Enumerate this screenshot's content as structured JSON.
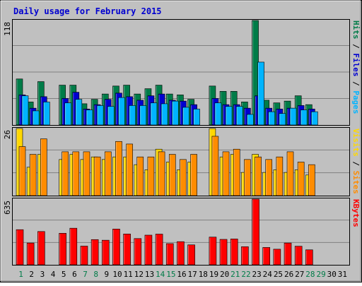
{
  "chart_data": {
    "type": "bar",
    "title": "Daily usage for February 2015",
    "days": [
      "1",
      "2",
      "3",
      "4",
      "5",
      "6",
      "7",
      "8",
      "9",
      "10",
      "11",
      "12",
      "13",
      "14",
      "15",
      "16",
      "17",
      "18",
      "19",
      "20",
      "21",
      "22",
      "23",
      "24",
      "25",
      "26",
      "27",
      "28",
      "29",
      "30",
      "31"
    ],
    "weekend_days": [
      "1",
      "7",
      "8",
      "14",
      "15",
      "21",
      "22",
      "28",
      "29"
    ],
    "panels": [
      {
        "id": "hits-files-pages",
        "ymax_label": "118",
        "ymax": 118,
        "axis_label_parts": [
          {
            "text": "Pages",
            "color": "#00b4ff"
          },
          {
            "text": " / ",
            "color": "#000000"
          },
          {
            "text": "Files",
            "color": "#0000d0"
          },
          {
            "text": " / ",
            "color": "#000000"
          },
          {
            "text": "Hits",
            "color": "#007c48"
          }
        ],
        "series": [
          {
            "name": "Hits",
            "color": "#007c48",
            "values": [
              52,
              26,
              49,
              0,
              45,
              45,
              24,
              29,
              35,
              44,
              45,
              35,
              41,
              45,
              35,
              34,
              29,
              0,
              44,
              38,
              38,
              26,
              118,
              28,
              25,
              27,
              33,
              23,
              0,
              0,
              0
            ]
          },
          {
            "name": "Files",
            "color": "#0000d0",
            "values": [
              34,
              19,
              32,
              0,
              30,
              37,
              18,
              23,
              29,
              36,
              32,
              28,
              33,
              35,
              28,
              27,
              23,
              0,
              30,
              23,
              23,
              19,
              33,
              19,
              18,
              19,
              22,
              18,
              0,
              0,
              0
            ]
          },
          {
            "name": "Pages",
            "color": "#00b4ff",
            "values": [
              33,
              16,
              26,
              0,
              25,
              29,
              17,
              22,
              21,
              31,
              22,
              22,
              25,
              24,
              27,
              20,
              18,
              0,
              25,
              21,
              21,
              12,
              71,
              15,
              13,
              19,
              17,
              15,
              0,
              0,
              0
            ]
          }
        ]
      },
      {
        "id": "visits-sites",
        "ymax_label": "26",
        "ymax": 26,
        "axis_label_parts": [
          {
            "text": "Sites",
            "color": "#ff8c00"
          },
          {
            "text": " / ",
            "color": "#000000"
          },
          {
            "text": "Visits",
            "color": "#ffd800"
          }
        ],
        "series": [
          {
            "name": "Visits",
            "color": "#ffd800",
            "values": [
              26,
              11,
              16,
              0,
              14,
              16,
              14,
              15,
              14,
              15,
              15,
              12,
              10,
              18,
              13,
              10,
              13,
              0,
              26,
              15,
              16,
              9,
              16,
              9,
              10,
              9,
              10,
              8,
              0,
              0,
              0
            ]
          },
          {
            "name": "Sites",
            "color": "#ff8c00",
            "values": [
              19,
              16,
              22,
              0,
              17,
              17,
              17,
              15,
              17,
              21,
              20,
              15,
              15,
              17,
              16,
              14,
              16,
              0,
              23,
              17,
              18,
              14,
              15,
              14,
              15,
              17,
              13,
              12,
              0,
              0,
              0
            ]
          }
        ]
      },
      {
        "id": "kbytes",
        "ymax_label": "635",
        "ymax": 635,
        "axis_label_parts": [
          {
            "text": "KBytes",
            "color": "#ff0000"
          }
        ],
        "series": [
          {
            "name": "KBytes",
            "color": "#ff0000",
            "values": [
              340,
              211,
              322,
              0,
              305,
              354,
              181,
              244,
              238,
              346,
              298,
              254,
              287,
              297,
              205,
              224,
              193,
              0,
              268,
              246,
              250,
              175,
              635,
              168,
              151,
              211,
              180,
              145,
              0,
              0,
              0
            ]
          }
        ]
      }
    ]
  }
}
